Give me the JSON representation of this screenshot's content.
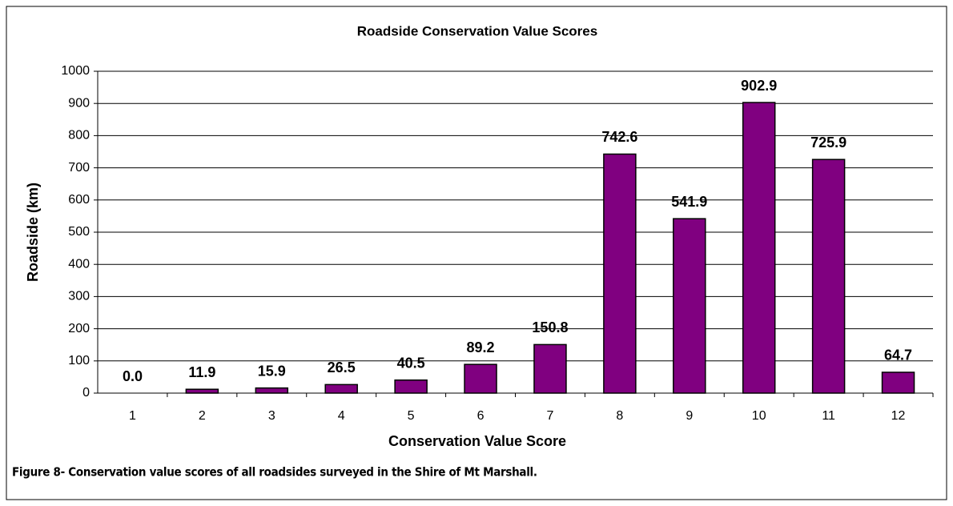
{
  "chart_data": {
    "type": "bar",
    "title": "Roadside Conservation Value Scores",
    "x_label": "Conservation Value Score",
    "y_label": "Roadside (km)",
    "categories": [
      "1",
      "2",
      "3",
      "4",
      "5",
      "6",
      "7",
      "8",
      "9",
      "10",
      "11",
      "12"
    ],
    "values": [
      0,
      11.9,
      15.9,
      26.5,
      40.5,
      89.2,
      150.8,
      742.6,
      541.9,
      902.9,
      725.9,
      64.7
    ],
    "value_labels": [
      "0.0",
      "11.9",
      "15.9",
      "26.5",
      "40.5",
      "89.2",
      "150.8",
      "742.6",
      "541.9",
      "902.9",
      "725.9",
      "64.7"
    ],
    "color": "#800080",
    "ylim": [
      0,
      1000
    ],
    "yticks": [
      0,
      100,
      200,
      300,
      400,
      500,
      600,
      700,
      800,
      900,
      1000
    ],
    "grid": true
  },
  "caption": "Figure 8- Conservation value scores of all roadsides surveyed in the Shire of Mt Marshall."
}
